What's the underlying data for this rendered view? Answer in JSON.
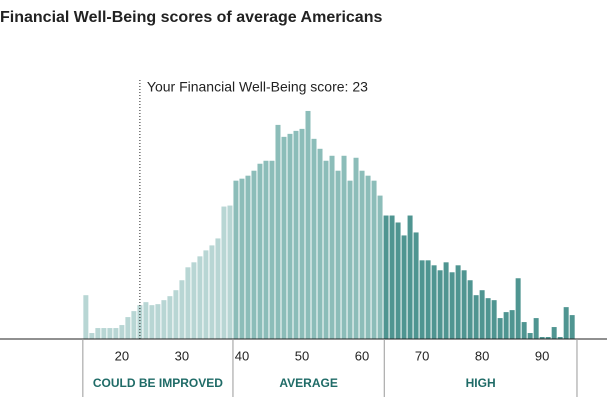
{
  "chart_data": {
    "type": "histogram",
    "title": "Financial Well-Being scores of average Americans",
    "annotation": {
      "text": "Your Financial Well-Being score: 23",
      "value": 23
    },
    "x": [
      14,
      15,
      16,
      17,
      18,
      19,
      20,
      21,
      22,
      23,
      24,
      25,
      26,
      27,
      28,
      29,
      30,
      31,
      32,
      33,
      34,
      35,
      36,
      37,
      38,
      39,
      40,
      41,
      42,
      43,
      44,
      45,
      46,
      47,
      48,
      49,
      50,
      51,
      52,
      53,
      54,
      55,
      56,
      57,
      58,
      59,
      60,
      61,
      62,
      63,
      64,
      65,
      66,
      67,
      68,
      69,
      70,
      71,
      72,
      73,
      74,
      75,
      76,
      77,
      78,
      79,
      80,
      81,
      82,
      83,
      84,
      85,
      86,
      87,
      88,
      89,
      90,
      91,
      92,
      93,
      94,
      95
    ],
    "values": [
      44,
      6,
      11,
      11,
      11,
      11,
      14,
      22,
      28,
      34,
      37,
      34,
      35,
      39,
      43,
      49,
      59,
      72,
      77,
      83,
      89,
      94,
      101,
      133,
      134,
      159,
      161,
      164,
      169,
      176,
      179,
      179,
      215,
      203,
      206,
      209,
      211,
      229,
      201,
      191,
      179,
      184,
      169,
      184,
      159,
      182,
      169,
      164,
      159,
      144,
      124,
      124,
      117,
      104,
      124,
      107,
      79,
      79,
      74,
      69,
      77,
      67,
      74,
      69,
      59,
      44,
      49,
      41,
      39,
      21,
      27,
      29,
      61,
      17,
      6,
      21,
      2,
      2,
      12,
      2,
      32,
      24
    ],
    "xlim": [
      -0.3,
      100.8
    ],
    "ylim": [
      0,
      240
    ],
    "xticks": [
      20,
      30,
      40,
      50,
      60,
      70,
      80,
      90
    ],
    "regions": [
      {
        "label": "COULD BE IMPROVED",
        "start": 13.5,
        "end": 38.5,
        "color": "#b8d6d4"
      },
      {
        "label": "AVERAGE",
        "start": 38.5,
        "end": 63.7,
        "color": "#8cbdb9"
      },
      {
        "label": "HIGH",
        "start": 63.7,
        "end": 95.8,
        "color": "#4f9591"
      }
    ]
  }
}
